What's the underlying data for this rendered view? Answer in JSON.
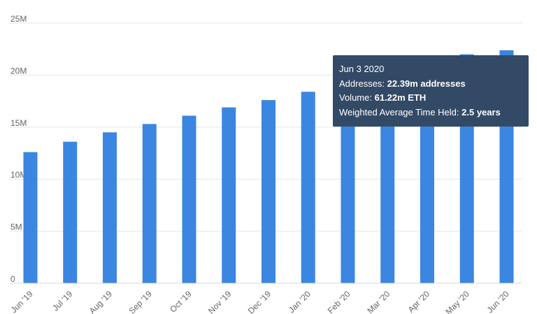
{
  "chart_data": {
    "type": "bar",
    "categories": [
      "Jun '19",
      "Jul '19",
      "Aug '19",
      "Sep '19",
      "Oct '19",
      "Nov '19",
      "Dec '19",
      "Jan '20",
      "Feb '20",
      "Mar '20",
      "Apr '20",
      "May '20",
      "Jun '20"
    ],
    "values": [
      12.6,
      13.6,
      14.5,
      15.3,
      16.1,
      16.9,
      17.6,
      18.4,
      19.2,
      20.0,
      21.0,
      22.0,
      22.39
    ],
    "ylim": [
      0,
      25
    ],
    "yticks": [
      "0",
      "5M",
      "10M",
      "15M",
      "20M",
      "25M"
    ],
    "ytick_values": [
      0,
      5,
      10,
      15,
      20,
      25
    ],
    "grid": true,
    "bar_color": "#3b86e0"
  },
  "tooltip": {
    "date": "Jun 3 2020",
    "addresses_label": "Addresses:",
    "addresses_value": "22.39m addresses",
    "volume_label": "Volume:",
    "volume_value": "61.22m ETH",
    "time_held_label": "Weighted Average Time Held:",
    "time_held_value": "2.5 years",
    "background": "#334a66"
  }
}
